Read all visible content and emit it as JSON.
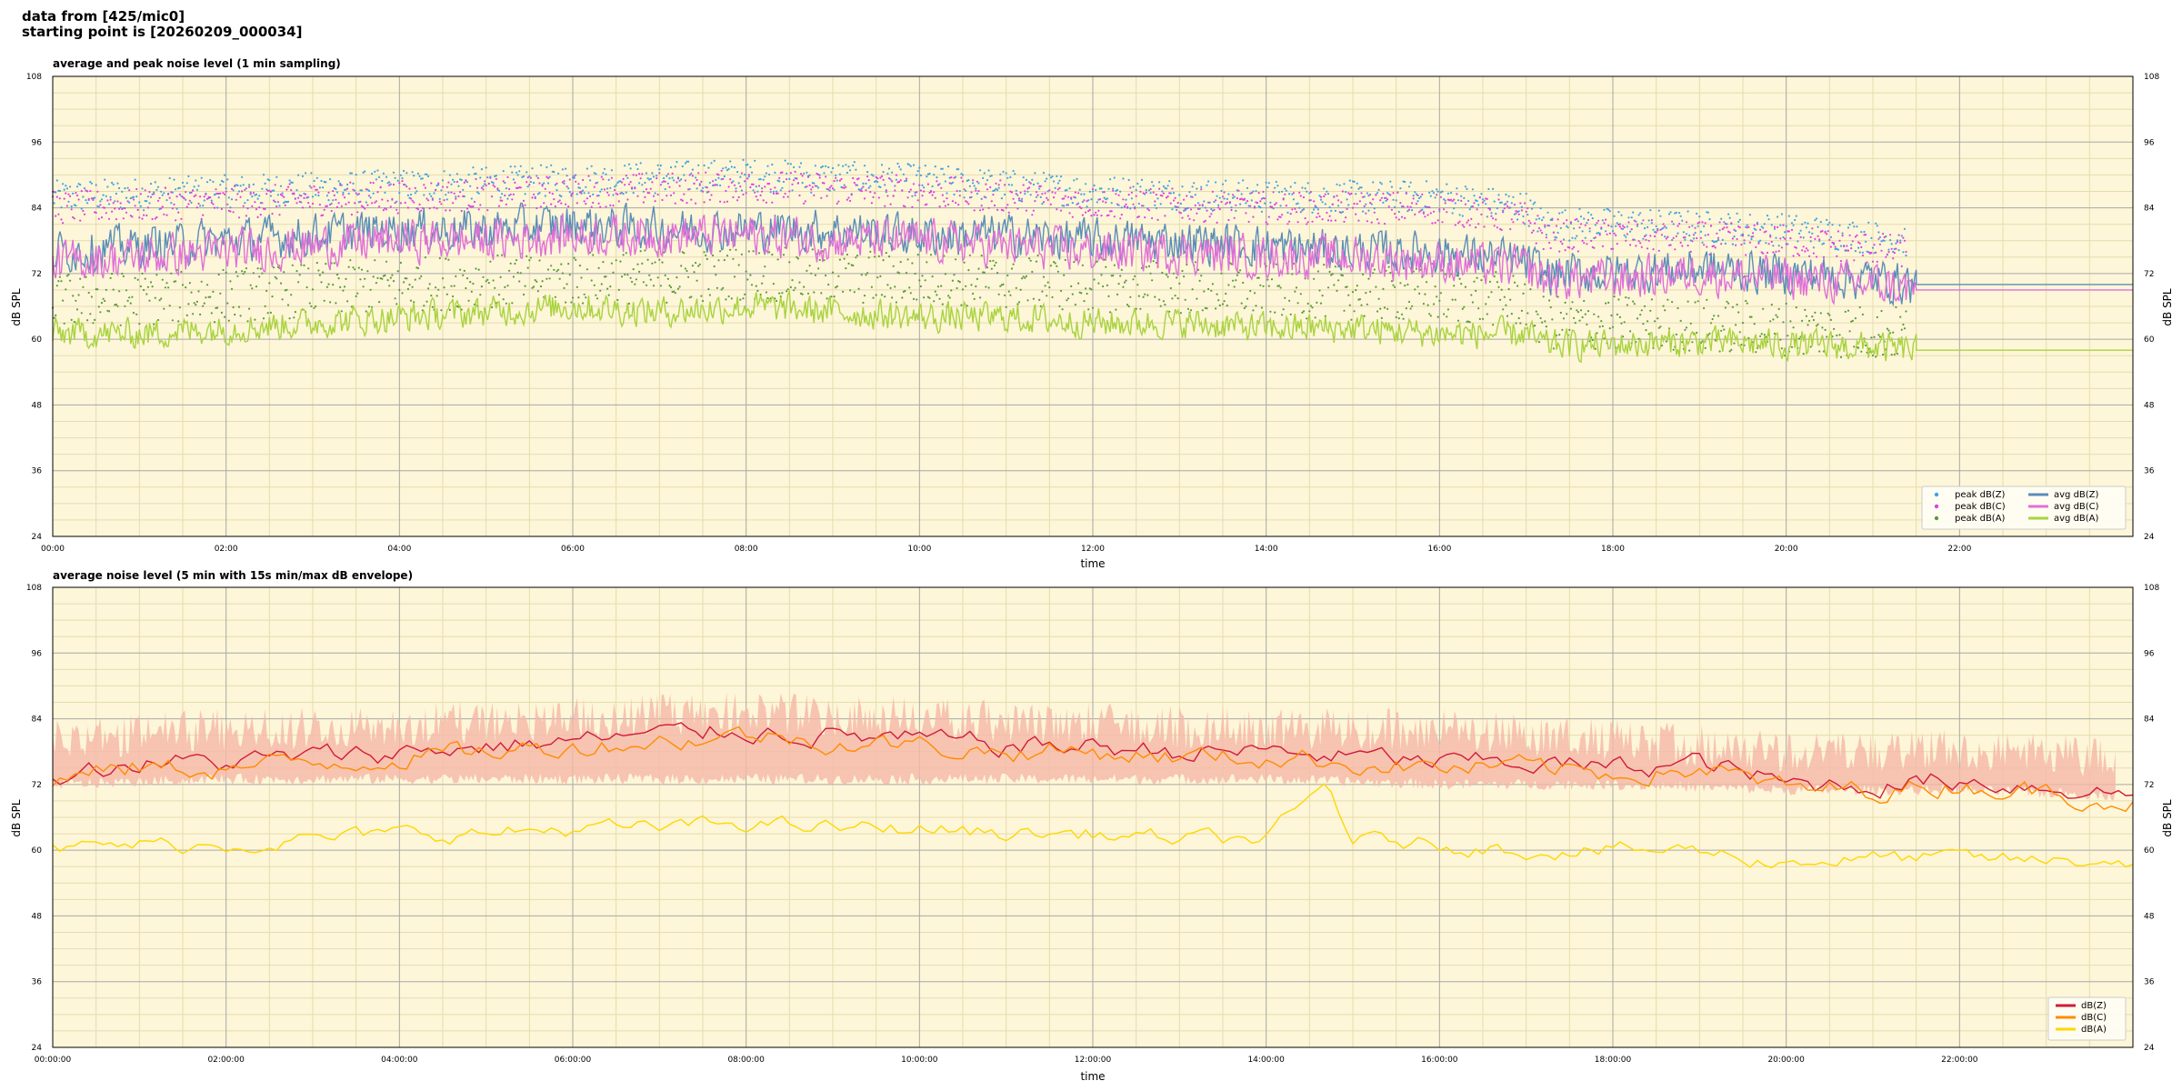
{
  "header": {
    "line1": "data from [425/mic0]",
    "line2": "starting point is [20260209_000034]"
  },
  "colors": {
    "plot_bg": "#fdf6d8",
    "grid_major": "#a8a8a8",
    "grid_minor": "#e6dcb0",
    "z": "#5b8db8",
    "c": "#e070d8",
    "a": "#a9d33f",
    "peak_z": "#3fa3e0",
    "peak_c": "#e040e0",
    "peak_a": "#5a9a3a",
    "z2": "#d01c3a",
    "c2": "#ff8c00",
    "a2": "#ffd700",
    "envelope": "#f5b8a8"
  },
  "chart_data": [
    {
      "type": "line",
      "title": "average and peak noise level (1 min sampling)",
      "xlabel": "time",
      "ylabel": "dB SPL",
      "xlim": [
        0,
        24
      ],
      "ylim": [
        24,
        108
      ],
      "x_ticks": [
        "00:00",
        "02:00",
        "04:00",
        "06:00",
        "08:00",
        "10:00",
        "12:00",
        "14:00",
        "16:00",
        "18:00",
        "20:00",
        "22:00"
      ],
      "y_ticks": [
        24,
        36,
        48,
        60,
        72,
        84,
        96,
        108
      ],
      "grid": true,
      "legend_position": "bottom-right",
      "legend": [
        {
          "label": "peak dB(Z)",
          "kind": "dot",
          "color_key": "peak_z"
        },
        {
          "label": "peak dB(C)",
          "kind": "dot",
          "color_key": "peak_c"
        },
        {
          "label": "peak dB(A)",
          "kind": "dot",
          "color_key": "peak_a"
        },
        {
          "label": "avg dB(Z)",
          "kind": "line",
          "color_key": "z"
        },
        {
          "label": "avg dB(C)",
          "kind": "line",
          "color_key": "c"
        },
        {
          "label": "avg dB(A)",
          "kind": "line",
          "color_key": "a"
        }
      ],
      "series": [
        {
          "name": "avg dB(Z)",
          "color_key": "z",
          "points": [
            [
              0,
              76
            ],
            [
              1,
              77
            ],
            [
              2,
              78
            ],
            [
              3,
              79
            ],
            [
              4,
              80
            ],
            [
              5,
              80
            ],
            [
              6,
              81
            ],
            [
              7,
              80
            ],
            [
              8,
              80
            ],
            [
              9,
              80
            ],
            [
              10,
              79
            ],
            [
              11,
              79
            ],
            [
              12,
              78
            ],
            [
              13,
              78
            ],
            [
              14,
              77
            ],
            [
              15,
              76
            ],
            [
              16,
              76
            ],
            [
              17,
              74
            ],
            [
              17.2,
              72
            ],
            [
              18,
              72
            ],
            [
              19,
              73
            ],
            [
              20,
              72
            ],
            [
              21,
              71
            ],
            [
              21.5,
              70
            ],
            [
              24,
              70
            ]
          ],
          "noise": 3.5,
          "data_end": 21.5
        },
        {
          "name": "avg dB(C)",
          "color_key": "c",
          "points": [
            [
              0,
              74
            ],
            [
              1,
              75
            ],
            [
              2,
              76
            ],
            [
              3,
              77
            ],
            [
              4,
              78
            ],
            [
              5,
              78
            ],
            [
              6,
              79
            ],
            [
              7,
              79
            ],
            [
              8,
              79
            ],
            [
              9,
              78
            ],
            [
              10,
              78
            ],
            [
              11,
              77
            ],
            [
              12,
              76
            ],
            [
              13,
              76
            ],
            [
              14,
              75
            ],
            [
              15,
              75
            ],
            [
              16,
              74
            ],
            [
              17,
              73
            ],
            [
              17.2,
              71
            ],
            [
              18,
              71
            ],
            [
              19,
              72
            ],
            [
              20,
              71
            ],
            [
              21,
              70
            ],
            [
              21.5,
              69
            ],
            [
              24,
              69
            ]
          ],
          "noise": 3.5,
          "data_end": 21.5
        },
        {
          "name": "avg dB(A)",
          "color_key": "a",
          "points": [
            [
              0,
              61
            ],
            [
              1,
              61
            ],
            [
              2,
              62
            ],
            [
              3,
              63
            ],
            [
              4,
              64
            ],
            [
              5,
              65
            ],
            [
              6,
              66
            ],
            [
              7,
              65
            ],
            [
              8,
              66
            ],
            [
              9,
              65
            ],
            [
              10,
              64
            ],
            [
              11,
              64
            ],
            [
              12,
              63
            ],
            [
              13,
              63
            ],
            [
              14,
              62
            ],
            [
              15,
              62
            ],
            [
              16,
              61
            ],
            [
              17,
              61
            ],
            [
              17.2,
              59
            ],
            [
              18,
              59
            ],
            [
              19,
              59.5
            ],
            [
              20,
              59
            ],
            [
              21,
              58.5
            ],
            [
              21.5,
              58
            ],
            [
              24,
              58
            ]
          ],
          "noise": 2.5,
          "data_end": 21.5
        }
      ],
      "peaks": [
        {
          "name": "peak dB(Z)",
          "color_key": "peak_z",
          "points": [
            [
              0,
              86
            ],
            [
              2,
              87
            ],
            [
              4,
              88
            ],
            [
              6,
              89
            ],
            [
              8,
              90
            ],
            [
              10,
              89
            ],
            [
              12,
              87
            ],
            [
              14,
              86
            ],
            [
              16,
              86
            ],
            [
              17,
              84
            ],
            [
              17.2,
              81
            ],
            [
              18,
              81
            ],
            [
              20,
              80
            ],
            [
              21.4,
              78
            ]
          ],
          "spread": 3
        },
        {
          "name": "peak dB(C)",
          "color_key": "peak_c",
          "points": [
            [
              0,
              84
            ],
            [
              2,
              85
            ],
            [
              4,
              86
            ],
            [
              6,
              87
            ],
            [
              8,
              88
            ],
            [
              10,
              87
            ],
            [
              12,
              85
            ],
            [
              14,
              84
            ],
            [
              16,
              84
            ],
            [
              17,
              82
            ],
            [
              17.2,
              79
            ],
            [
              18,
              79
            ],
            [
              20,
              78
            ],
            [
              21.4,
              76
            ]
          ],
          "spread": 3
        },
        {
          "name": "peak dB(A)",
          "color_key": "peak_a",
          "points": [
            [
              0,
              67
            ],
            [
              2,
              68
            ],
            [
              4,
              70
            ],
            [
              6,
              71
            ],
            [
              8,
              72
            ],
            [
              10,
              71
            ],
            [
              12,
              70
            ],
            [
              14,
              69
            ],
            [
              16,
              68
            ],
            [
              17,
              67
            ],
            [
              17.2,
              63
            ],
            [
              18,
              63
            ],
            [
              20,
              62
            ],
            [
              21.4,
              61
            ]
          ],
          "spread": 5
        }
      ]
    },
    {
      "type": "line",
      "title": "average noise level (5 min with 15s min/max dB envelope)",
      "xlabel": "time",
      "ylabel": "dB SPL",
      "xlim": [
        0,
        24
      ],
      "ylim": [
        24,
        108
      ],
      "x_ticks": [
        "00:00:00",
        "02:00:00",
        "04:00:00",
        "06:00:00",
        "08:00:00",
        "10:00:00",
        "12:00:00",
        "14:00:00",
        "16:00:00",
        "18:00:00",
        "20:00:00",
        "22:00:00"
      ],
      "y_ticks": [
        24,
        36,
        48,
        60,
        72,
        84,
        96,
        108
      ],
      "grid": true,
      "legend_position": "bottom-right",
      "legend": [
        {
          "label": "dB(Z)",
          "kind": "line",
          "color_key": "z2"
        },
        {
          "label": "dB(C)",
          "kind": "line",
          "color_key": "c2"
        },
        {
          "label": "dB(A)",
          "kind": "line",
          "color_key": "a2"
        }
      ],
      "envelope": {
        "color_key": "envelope",
        "upper": [
          [
            0,
            84
          ],
          [
            2,
            86
          ],
          [
            4,
            87
          ],
          [
            6,
            88
          ],
          [
            8,
            89
          ],
          [
            10,
            88
          ],
          [
            12,
            87
          ],
          [
            14,
            86
          ],
          [
            16,
            86
          ],
          [
            18,
            84
          ],
          [
            20,
            82
          ],
          [
            22,
            82
          ],
          [
            23.8,
            81
          ]
        ],
        "lower": [
          [
            0,
            71
          ],
          [
            2,
            72
          ],
          [
            4,
            72
          ],
          [
            6,
            72
          ],
          [
            8,
            72
          ],
          [
            10,
            72
          ],
          [
            12,
            72
          ],
          [
            14,
            72
          ],
          [
            16,
            71
          ],
          [
            18,
            71
          ],
          [
            20,
            70
          ],
          [
            22,
            70
          ],
          [
            23.8,
            69
          ]
        ],
        "end": 23.8
      },
      "series": [
        {
          "name": "dB(Z)",
          "color_key": "z2",
          "points": [
            [
              0,
              74
            ],
            [
              1,
              76
            ],
            [
              2,
              76
            ],
            [
              3,
              77
            ],
            [
              4,
              78
            ],
            [
              5,
              79
            ],
            [
              6,
              80
            ],
            [
              7,
              81
            ],
            [
              8,
              82
            ],
            [
              9,
              81
            ],
            [
              10,
              80
            ],
            [
              11,
              79
            ],
            [
              12,
              79
            ],
            [
              13,
              78
            ],
            [
              14,
              78
            ],
            [
              15,
              77
            ],
            [
              16,
              76
            ],
            [
              17,
              76
            ],
            [
              18,
              75
            ],
            [
              19,
              76
            ],
            [
              19.8,
              73
            ],
            [
              20,
              72
            ],
            [
              21,
              72
            ],
            [
              22,
              73
            ],
            [
              23.5,
              71
            ],
            [
              24,
              70
            ]
          ],
          "noise": 1.6
        },
        {
          "name": "dB(C)",
          "color_key": "c2",
          "points": [
            [
              0,
              73
            ],
            [
              1,
              75
            ],
            [
              2,
              75
            ],
            [
              3,
              76
            ],
            [
              4,
              77
            ],
            [
              5,
              78
            ],
            [
              6,
              79
            ],
            [
              7,
              80
            ],
            [
              8,
              81
            ],
            [
              9,
              80
            ],
            [
              10,
              79
            ],
            [
              11,
              78
            ],
            [
              12,
              78
            ],
            [
              13,
              77
            ],
            [
              14,
              77
            ],
            [
              15,
              76
            ],
            [
              16,
              75
            ],
            [
              17,
              75
            ],
            [
              18,
              74
            ],
            [
              19,
              75
            ],
            [
              19.8,
              72
            ],
            [
              20,
              71
            ],
            [
              21,
              71
            ],
            [
              22,
              72
            ],
            [
              23.5,
              70
            ],
            [
              24,
              69
            ]
          ],
          "noise": 1.6
        },
        {
          "name": "dB(A)",
          "color_key": "a2",
          "points": [
            [
              0,
              60
            ],
            [
              1,
              61
            ],
            [
              2,
              61
            ],
            [
              3,
              62
            ],
            [
              4,
              63
            ],
            [
              5,
              63
            ],
            [
              6,
              64
            ],
            [
              7,
              64
            ],
            [
              8,
              65
            ],
            [
              9,
              64
            ],
            [
              10,
              64
            ],
            [
              11,
              63
            ],
            [
              12,
              63
            ],
            [
              13,
              62
            ],
            [
              14,
              62
            ],
            [
              14.7,
              72
            ],
            [
              15,
              62
            ],
            [
              16,
              61
            ],
            [
              17,
              60
            ],
            [
              18,
              60
            ],
            [
              19,
              60
            ],
            [
              19.8,
              58
            ],
            [
              20,
              58
            ],
            [
              21,
              58.5
            ],
            [
              22,
              58.5
            ],
            [
              23,
              58
            ],
            [
              24,
              58
            ]
          ],
          "noise": 1.2
        }
      ]
    }
  ]
}
